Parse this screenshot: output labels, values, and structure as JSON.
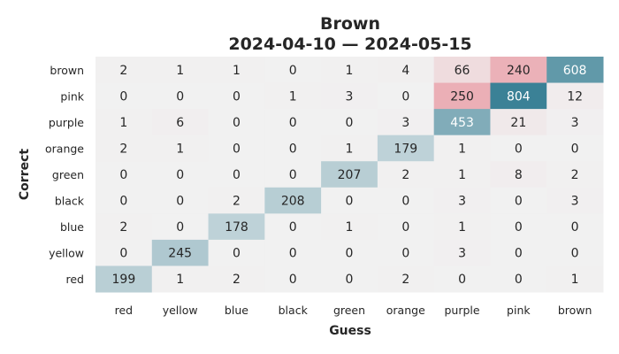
{
  "chart_data": {
    "type": "heatmap",
    "title": "Brown",
    "subtitle": "2024-04-10 — 2024-05-15",
    "xlabel": "Guess",
    "ylabel": "Correct",
    "x_categories": [
      "red",
      "yellow",
      "blue",
      "black",
      "green",
      "orange",
      "purple",
      "pink",
      "brown"
    ],
    "y_categories": [
      "brown",
      "pink",
      "purple",
      "orange",
      "green",
      "black",
      "blue",
      "yellow",
      "red"
    ],
    "values": [
      [
        2,
        1,
        1,
        0,
        1,
        4,
        66,
        240,
        608
      ],
      [
        0,
        0,
        0,
        1,
        3,
        0,
        250,
        804,
        12
      ],
      [
        1,
        6,
        0,
        0,
        0,
        3,
        453,
        21,
        3
      ],
      [
        2,
        1,
        0,
        0,
        1,
        179,
        1,
        0,
        0
      ],
      [
        0,
        0,
        0,
        0,
        207,
        2,
        1,
        8,
        2
      ],
      [
        0,
        0,
        2,
        208,
        0,
        0,
        3,
        0,
        3
      ],
      [
        2,
        0,
        178,
        0,
        1,
        0,
        1,
        0,
        0
      ],
      [
        0,
        245,
        0,
        0,
        0,
        0,
        3,
        0,
        0
      ],
      [
        199,
        1,
        2,
        0,
        0,
        2,
        0,
        0,
        1
      ]
    ],
    "colors": {
      "neutral": "#f1f1f1",
      "diagonal_accent": "#3b8196",
      "off_diagonal_accent": "#e03f52",
      "text_dark": "#262626",
      "text_light": "#ffffff"
    }
  }
}
